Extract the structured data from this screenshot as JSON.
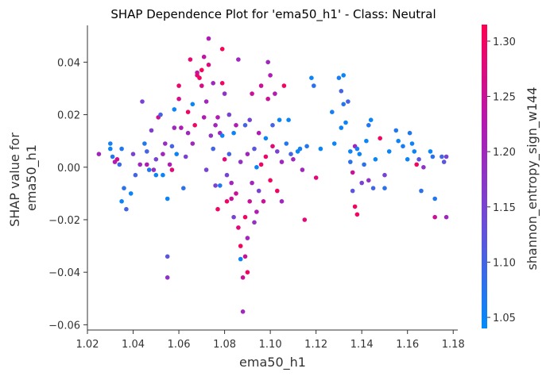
{
  "chart_data": {
    "type": "scatter",
    "title": "SHAP Dependence Plot for 'ema50_h1' - Class: Neutral",
    "xlabel": "ema50_h1",
    "ylabel_lines": [
      "SHAP value for",
      "ema50_h1"
    ],
    "xlim": [
      1.02,
      1.182
    ],
    "ylim": [
      -0.062,
      0.054
    ],
    "xticks": [
      1.02,
      1.04,
      1.06,
      1.08,
      1.1,
      1.12,
      1.14,
      1.16,
      1.18
    ],
    "xtick_labels": [
      "1.02",
      "1.04",
      "1.06",
      "1.08",
      "1.10",
      "1.12",
      "1.14",
      "1.16",
      "1.18"
    ],
    "yticks": [
      -0.06,
      -0.04,
      -0.02,
      0.0,
      0.02,
      0.04
    ],
    "ytick_labels": [
      "−0.06",
      "−0.04",
      "−0.02",
      "0.00",
      "0.02",
      "0.04"
    ],
    "grid": false,
    "colorbar": {
      "label": "shannon_entropy_sign_w144",
      "range": [
        1.04,
        1.315
      ],
      "ticks": [
        1.05,
        1.1,
        1.15,
        1.2,
        1.25,
        1.3
      ],
      "tick_labels": [
        "1.05",
        "1.10",
        "1.15",
        "1.20",
        "1.25",
        "1.30"
      ],
      "colors": [
        "#008bfb",
        "#6d4bd8",
        "#b617b0",
        "#ff0052"
      ]
    },
    "points": [
      [
        1.025,
        0.005,
        1.2
      ],
      [
        1.03,
        0.009,
        1.06
      ],
      [
        1.03,
        0.007,
        1.05
      ],
      [
        1.031,
        0.004,
        1.07
      ],
      [
        1.032,
        0.002,
        1.22
      ],
      [
        1.033,
        0.003,
        1.25
      ],
      [
        1.034,
        0.001,
        1.09
      ],
      [
        1.035,
        0.007,
        1.07
      ],
      [
        1.036,
        -0.008,
        1.08
      ],
      [
        1.035,
        -0.013,
        1.05
      ],
      [
        1.037,
        -0.016,
        1.1
      ],
      [
        1.039,
        -0.01,
        1.05
      ],
      [
        1.04,
        0.005,
        1.15
      ],
      [
        1.041,
        -0.003,
        1.1
      ],
      [
        1.043,
        0.001,
        1.2
      ],
      [
        1.044,
        0.025,
        1.15
      ],
      [
        1.045,
        0.009,
        1.07
      ],
      [
        1.046,
        0.006,
        1.1
      ],
      [
        1.046,
        0.001,
        1.22
      ],
      [
        1.047,
        -0.001,
        1.07
      ],
      [
        1.048,
        0.014,
        1.16
      ],
      [
        1.049,
        -0.001,
        1.19
      ],
      [
        1.05,
        0.003,
        1.15
      ],
      [
        1.05,
        -0.003,
        1.05
      ],
      [
        1.051,
        0.019,
        1.26
      ],
      [
        1.052,
        0.02,
        1.1
      ],
      [
        1.053,
        0.005,
        1.2
      ],
      [
        1.053,
        -0.003,
        1.05
      ],
      [
        1.054,
        0.009,
        1.19
      ],
      [
        1.055,
        -0.012,
        1.05
      ],
      [
        1.055,
        -0.034,
        1.12
      ],
      [
        1.055,
        -0.042,
        1.18
      ],
      [
        1.056,
        0.001,
        1.22
      ],
      [
        1.057,
        0.008,
        1.1
      ],
      [
        1.057,
        -0.001,
        1.28
      ],
      [
        1.058,
        0.022,
        1.05
      ],
      [
        1.058,
        0.015,
        1.2
      ],
      [
        1.059,
        0.005,
        1.05
      ],
      [
        1.06,
        0.031,
        1.29
      ],
      [
        1.06,
        0.026,
        1.26
      ],
      [
        1.061,
        0.015,
        1.22
      ],
      [
        1.062,
        -0.008,
        1.08
      ],
      [
        1.063,
        0.004,
        1.15
      ],
      [
        1.064,
        0.021,
        1.3
      ],
      [
        1.064,
        0.013,
        1.2
      ],
      [
        1.065,
        0.041,
        1.29
      ],
      [
        1.066,
        0.024,
        1.05
      ],
      [
        1.066,
        0.009,
        1.2
      ],
      [
        1.067,
        0.016,
        1.3
      ],
      [
        1.068,
        0.036,
        1.24
      ],
      [
        1.068,
        0.035,
        1.28
      ],
      [
        1.069,
        0.034,
        1.3
      ],
      [
        1.07,
        0.037,
        1.31
      ],
      [
        1.07,
        0.031,
        1.27
      ],
      [
        1.071,
        0.042,
        1.24
      ],
      [
        1.071,
        0.019,
        1.22
      ],
      [
        1.072,
        0.025,
        1.2
      ],
      [
        1.072,
        -0.001,
        1.15
      ],
      [
        1.073,
        0.049,
        1.22
      ],
      [
        1.073,
        0.039,
        1.27
      ],
      [
        1.074,
        0.012,
        1.18
      ],
      [
        1.075,
        0.032,
        1.2
      ],
      [
        1.075,
        0.007,
        1.1
      ],
      [
        1.076,
        0.016,
        1.2
      ],
      [
        1.076,
        -0.007,
        1.15
      ],
      [
        1.077,
        0.019,
        1.22
      ],
      [
        1.077,
        -0.016,
        1.3
      ],
      [
        1.078,
        0.013,
        1.2
      ],
      [
        1.078,
        -0.007,
        1.07
      ],
      [
        1.079,
        0.045,
        1.31
      ],
      [
        1.079,
        0.032,
        1.3
      ],
      [
        1.079,
        0.012,
        1.05
      ],
      [
        1.08,
        0.028,
        1.18
      ],
      [
        1.08,
        0.003,
        1.28
      ],
      [
        1.081,
        -0.003,
        1.15
      ],
      [
        1.081,
        -0.013,
        1.3
      ],
      [
        1.082,
        0.02,
        1.15
      ],
      [
        1.082,
        0.005,
        1.1
      ],
      [
        1.083,
        -0.006,
        1.2
      ],
      [
        1.083,
        -0.012,
        1.25
      ],
      [
        1.084,
        0.013,
        1.05
      ],
      [
        1.084,
        -0.019,
        1.15
      ],
      [
        1.085,
        0.016,
        1.22
      ],
      [
        1.085,
        -0.01,
        1.25
      ],
      [
        1.086,
        0.041,
        1.2
      ],
      [
        1.086,
        -0.023,
        1.28
      ],
      [
        1.087,
        -0.03,
        1.3
      ],
      [
        1.087,
        -0.035,
        1.05
      ],
      [
        1.087,
        0.002,
        1.18
      ],
      [
        1.088,
        -0.042,
        1.25
      ],
      [
        1.088,
        -0.055,
        1.2
      ],
      [
        1.089,
        -0.034,
        1.25
      ],
      [
        1.089,
        -0.019,
        1.3
      ],
      [
        1.089,
        0.016,
        1.1
      ],
      [
        1.09,
        -0.04,
        1.3
      ],
      [
        1.09,
        -0.027,
        1.2
      ],
      [
        1.09,
        0.005,
        1.2
      ],
      [
        1.091,
        -0.013,
        1.25
      ],
      [
        1.091,
        0.018,
        1.15
      ],
      [
        1.092,
        0.028,
        1.25
      ],
      [
        1.092,
        -0.006,
        1.2
      ],
      [
        1.093,
        0.007,
        1.12
      ],
      [
        1.093,
        -0.021,
        1.18
      ],
      [
        1.094,
        0.0,
        1.05
      ],
      [
        1.094,
        -0.017,
        1.22
      ],
      [
        1.095,
        0.013,
        1.22
      ],
      [
        1.095,
        -0.009,
        1.15
      ],
      [
        1.096,
        0.031,
        1.25
      ],
      [
        1.096,
        0.001,
        1.3
      ],
      [
        1.097,
        -0.013,
        1.25
      ],
      [
        1.098,
        0.004,
        1.3
      ],
      [
        1.098,
        0.011,
        1.05
      ],
      [
        1.099,
        0.04,
        1.2
      ],
      [
        1.099,
        0.026,
        1.25
      ],
      [
        1.1,
        0.035,
        1.22
      ],
      [
        1.1,
        -0.005,
        1.3
      ],
      [
        1.101,
        0.008,
        1.28
      ],
      [
        1.101,
        0.016,
        1.1
      ],
      [
        1.102,
        0.028,
        1.22
      ],
      [
        1.103,
        0.006,
        1.15
      ],
      [
        1.103,
        -0.009,
        1.3
      ],
      [
        1.104,
        0.018,
        1.05
      ],
      [
        1.105,
        0.002,
        1.2
      ],
      [
        1.105,
        -0.013,
        1.2
      ],
      [
        1.106,
        0.031,
        1.3
      ],
      [
        1.107,
        0.009,
        1.07
      ],
      [
        1.108,
        0.018,
        1.05
      ],
      [
        1.109,
        0.005,
        1.1
      ],
      [
        1.11,
        0.003,
        1.2
      ],
      [
        1.112,
        0.006,
        1.05
      ],
      [
        1.113,
        0.007,
        1.06
      ],
      [
        1.114,
        -0.001,
        1.2
      ],
      [
        1.115,
        -0.02,
        1.28
      ],
      [
        1.116,
        0.008,
        1.07
      ],
      [
        1.118,
        0.034,
        1.05
      ],
      [
        1.119,
        0.031,
        1.08
      ],
      [
        1.12,
        -0.004,
        1.28
      ],
      [
        1.122,
        0.007,
        1.05
      ],
      [
        1.127,
        0.021,
        1.06
      ],
      [
        1.128,
        0.009,
        1.05
      ],
      [
        1.13,
        0.034,
        1.06
      ],
      [
        1.131,
        0.015,
        1.05
      ],
      [
        1.131,
        0.029,
        1.1
      ],
      [
        1.132,
        0.035,
        1.05
      ],
      [
        1.132,
        0.024,
        1.07
      ],
      [
        1.133,
        0.017,
        1.05
      ],
      [
        1.134,
        0.025,
        1.1
      ],
      [
        1.135,
        0.006,
        1.05
      ],
      [
        1.135,
        0.002,
        1.08
      ],
      [
        1.136,
        -0.002,
        1.25
      ],
      [
        1.136,
        -0.009,
        1.12
      ],
      [
        1.137,
        0.008,
        1.2
      ],
      [
        1.137,
        -0.015,
        1.3
      ],
      [
        1.138,
        0.007,
        1.06
      ],
      [
        1.138,
        -0.018,
        1.3
      ],
      [
        1.139,
        0.005,
        1.05
      ],
      [
        1.14,
        -0.006,
        1.15
      ],
      [
        1.141,
        0.001,
        1.08
      ],
      [
        1.142,
        0.01,
        1.05
      ],
      [
        1.143,
        0.016,
        1.07
      ],
      [
        1.143,
        -0.005,
        1.18
      ],
      [
        1.144,
        0.018,
        1.05
      ],
      [
        1.145,
        -0.008,
        1.1
      ],
      [
        1.146,
        0.003,
        1.05
      ],
      [
        1.148,
        0.011,
        1.3
      ],
      [
        1.15,
        -0.003,
        1.15
      ],
      [
        1.15,
        -0.008,
        1.08
      ],
      [
        1.152,
        0.006,
        1.05
      ],
      [
        1.155,
        0.014,
        1.07
      ],
      [
        1.156,
        0.01,
        1.05
      ],
      [
        1.158,
        0.008,
        1.06
      ],
      [
        1.16,
        0.003,
        1.05
      ],
      [
        1.161,
        0.013,
        1.07
      ],
      [
        1.162,
        0.009,
        1.05
      ],
      [
        1.163,
        0.006,
        1.05
      ],
      [
        1.164,
        0.001,
        1.3
      ],
      [
        1.165,
        0.003,
        1.12
      ],
      [
        1.166,
        -0.009,
        1.08
      ],
      [
        1.167,
        0.0,
        1.18
      ],
      [
        1.17,
        0.006,
        1.05
      ],
      [
        1.171,
        0.004,
        1.08
      ],
      [
        1.172,
        -0.012,
        1.07
      ],
      [
        1.172,
        -0.019,
        1.25
      ],
      [
        1.175,
        0.004,
        1.1
      ],
      [
        1.176,
        0.002,
        1.12
      ],
      [
        1.177,
        -0.019,
        1.2
      ],
      [
        1.177,
        0.004,
        1.15
      ]
    ]
  }
}
